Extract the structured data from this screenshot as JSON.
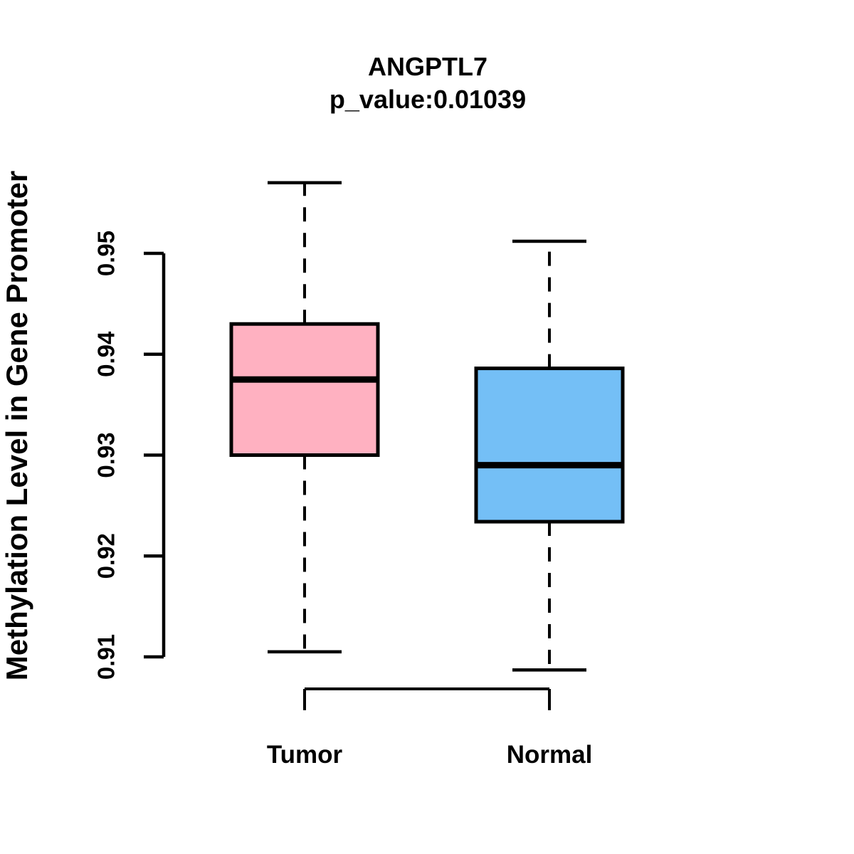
{
  "page": {
    "background": "#FFFFFF",
    "line_color": "#000000"
  },
  "chart_data": {
    "type": "boxplot",
    "title": "ANGPTL7",
    "subtitle": "p_value:0.01039",
    "ylabel": "Methylation Level in Gene Promoter",
    "xlabel": "",
    "categories": [
      "Tumor",
      "Normal"
    ],
    "y_ticks": [
      0.91,
      0.92,
      0.93,
      0.94,
      0.95
    ],
    "y_tick_labels": [
      "0.91",
      "0.92",
      "0.93",
      "0.94",
      "0.95"
    ],
    "ylim": [
      0.905,
      0.96
    ],
    "grid": false,
    "legend": false,
    "whisker_style": "dashed",
    "series": [
      {
        "name": "Tumor",
        "color": "#FFB1C1",
        "whisker_low": 0.9105,
        "q1": 0.93,
        "median": 0.9375,
        "q3": 0.943,
        "whisker_high": 0.957
      },
      {
        "name": "Normal",
        "color": "#74BFF6",
        "whisker_low": 0.9087,
        "q1": 0.9234,
        "median": 0.929,
        "q3": 0.9386,
        "whisker_high": 0.9512
      }
    ]
  }
}
